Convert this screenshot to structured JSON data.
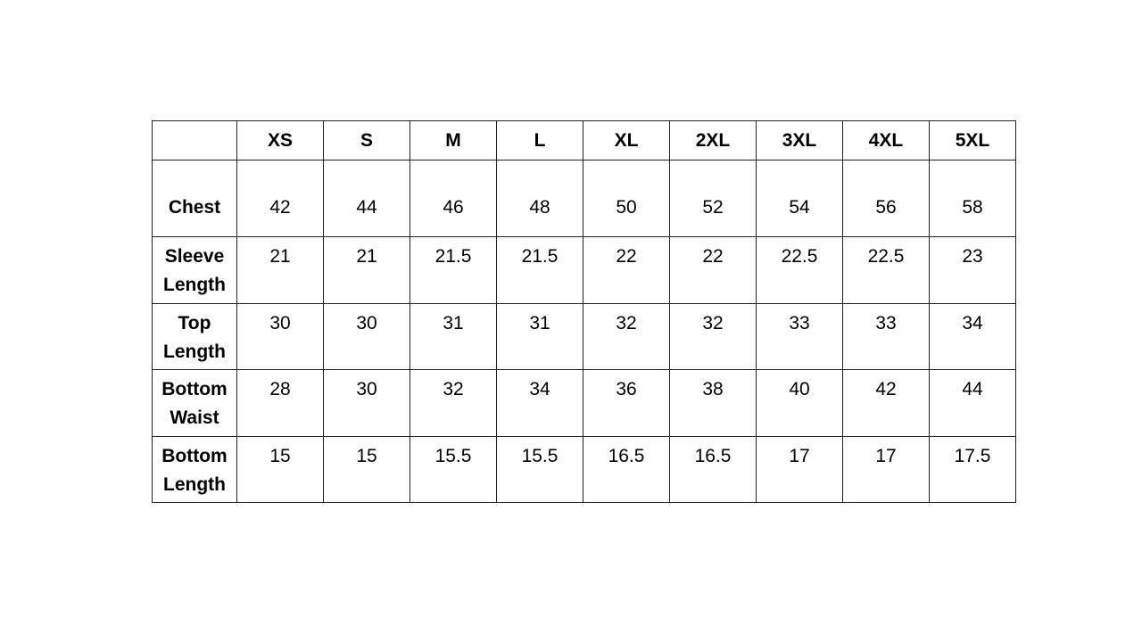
{
  "table": {
    "corner": "",
    "sizes": [
      "XS",
      "S",
      "M",
      "L",
      "XL",
      "2XL",
      "3XL",
      "4XL",
      "5XL"
    ],
    "rows": [
      {
        "label": [
          "Chest"
        ],
        "values": [
          "42",
          "44",
          "46",
          "48",
          "50",
          "52",
          "54",
          "56",
          "58"
        ]
      },
      {
        "label": [
          "Sleeve",
          "Length"
        ],
        "values": [
          "21",
          "21",
          "21.5",
          "21.5",
          "22",
          "22",
          "22.5",
          "22.5",
          "23"
        ]
      },
      {
        "label": [
          "Top",
          "Length"
        ],
        "values": [
          "30",
          "30",
          "31",
          "31",
          "32",
          "32",
          "33",
          "33",
          "34"
        ]
      },
      {
        "label": [
          "Bottom",
          "Waist"
        ],
        "values": [
          "28",
          "30",
          "32",
          "34",
          "36",
          "38",
          "40",
          "42",
          "44"
        ]
      },
      {
        "label": [
          "Bottom",
          "Length"
        ],
        "values": [
          "15",
          "15",
          "15.5",
          "15.5",
          "16.5",
          "16.5",
          "17",
          "17",
          "17.5"
        ]
      }
    ]
  }
}
